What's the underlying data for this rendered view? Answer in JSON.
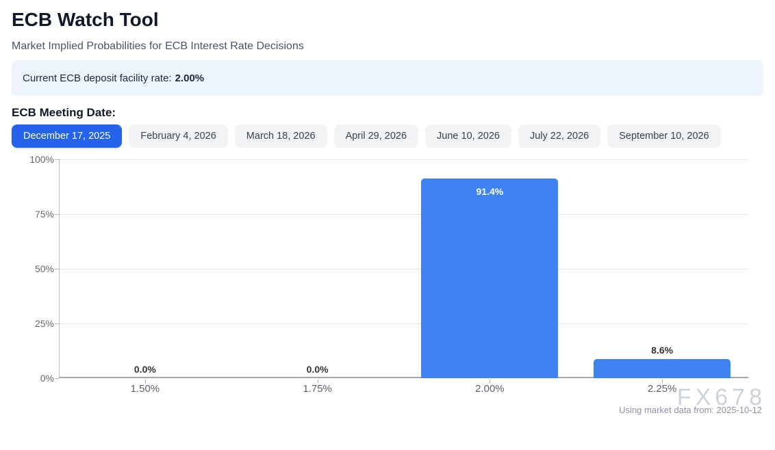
{
  "page": {
    "title": "ECB Watch Tool",
    "subtitle": "Market Implied Probabilities for ECB Interest Rate Decisions",
    "rate_banner": {
      "label": "Current ECB deposit facility rate:",
      "value": "2.00%"
    },
    "meeting_date_heading": "ECB Meeting Date:",
    "footer_note": "Using market data from: 2025-10-12",
    "watermark": "FX678"
  },
  "meeting_tabs": [
    {
      "label": "December 17, 2025",
      "active": true
    },
    {
      "label": "February 4, 2026",
      "active": false
    },
    {
      "label": "March 18, 2026",
      "active": false
    },
    {
      "label": "April 29, 2026",
      "active": false
    },
    {
      "label": "June 10, 2026",
      "active": false
    },
    {
      "label": "July 22, 2026",
      "active": false
    },
    {
      "label": "September 10, 2026",
      "active": false
    }
  ],
  "chart_data": {
    "type": "bar",
    "title": "",
    "xlabel": "",
    "ylabel": "",
    "categories": [
      "1.50%",
      "1.75%",
      "2.00%",
      "2.25%"
    ],
    "values": [
      0.0,
      0.0,
      91.4,
      8.6
    ],
    "bar_labels": [
      "0.0%",
      "0.0%",
      "91.4%",
      "8.6%"
    ],
    "ylim": [
      0,
      100
    ],
    "yticks": [
      "100%",
      "75%",
      "50%",
      "25%",
      "0%"
    ],
    "grid": true,
    "legend": "none",
    "bar_color": "#3e82f4",
    "label_inside_color": "#ffffff",
    "label_outside_color": "#333333"
  },
  "colors": {
    "accent_active_tab": "#2563eb",
    "bar_blue": "#3e82f4",
    "banner_bg": "#edf4fe",
    "grid_line": "#e6e6e6",
    "axis_line": "#a6a6a6",
    "watermark_gray": "#cdd3db"
  }
}
